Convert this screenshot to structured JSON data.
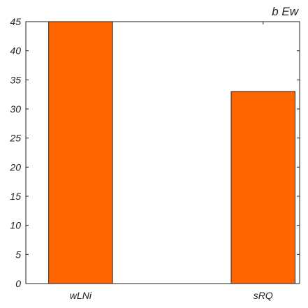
{
  "chart_data": {
    "type": "bar",
    "title": "b Ew",
    "xlabel": "",
    "ylabel": "",
    "categories": [
      "wLNi",
      "sRQ"
    ],
    "values": [
      45,
      33
    ],
    "ylim": [
      0,
      45
    ],
    "yticks": [
      0,
      5,
      10,
      15,
      20,
      25,
      30,
      35,
      40,
      45
    ],
    "grid": false,
    "bar_color": "#ff6600",
    "edge_color": "#222222"
  }
}
